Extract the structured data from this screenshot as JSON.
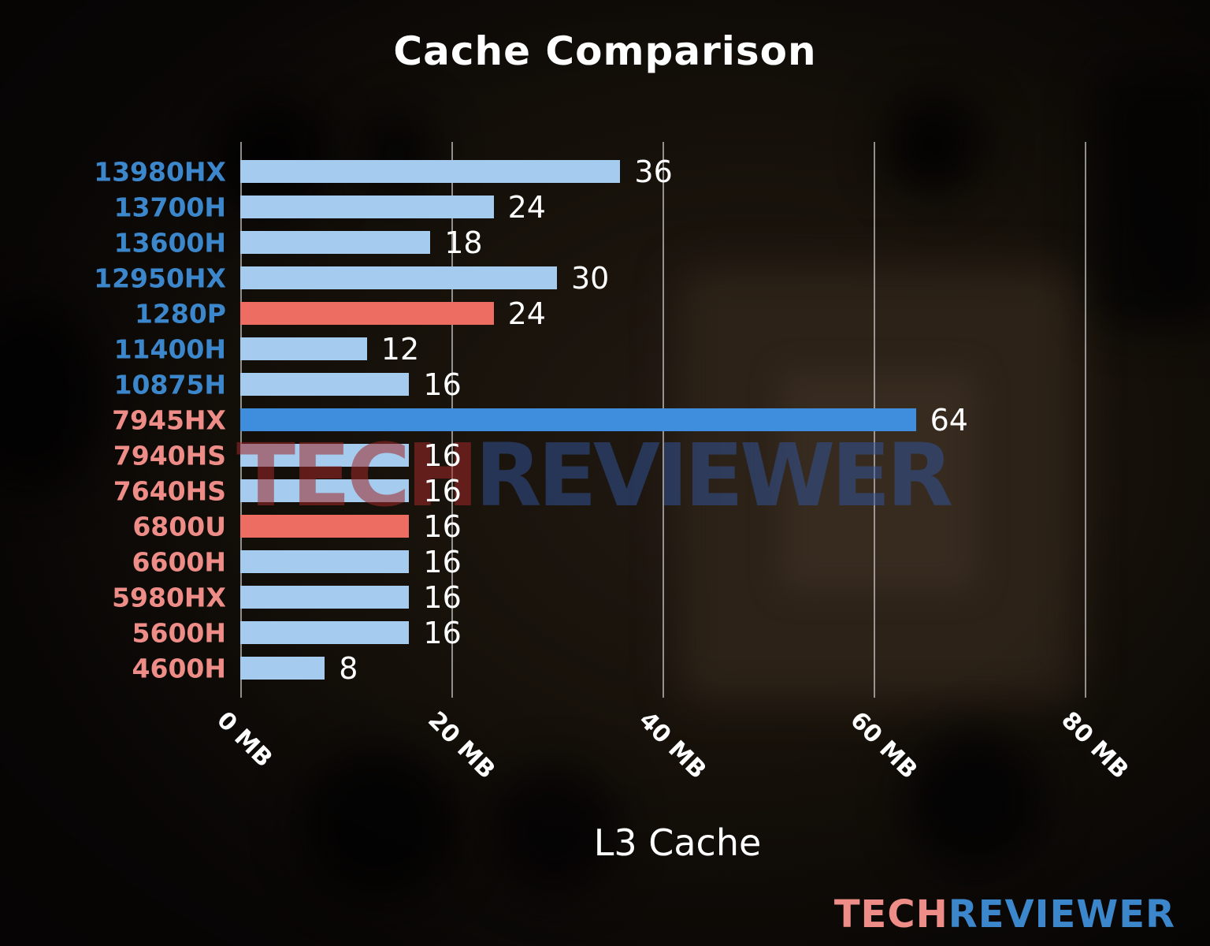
{
  "title": "Cache Comparison",
  "watermark": {
    "tech": "TECH",
    "reviewer": "REVIEWER"
  },
  "logo": {
    "tech": "TECH",
    "reviewer": "REVIEWER"
  },
  "colors": {
    "light_blue": "#A5CBEE",
    "bright_blue": "#3F8EDD",
    "salmon": "#EE6D62",
    "intel": "#3C87CB",
    "amd": "#EE8D87",
    "value_text": "#FFFFFF",
    "gridline": "rgba(200,200,200,0.7)",
    "watermark_tech": "rgba(160,40,40,0.55)",
    "watermark_reviewer": "rgba(50,85,160,0.5)",
    "logo_tech": "#EE8D87",
    "logo_reviewer": "#3C87CB"
  },
  "chart_data": {
    "type": "bar",
    "orientation": "horizontal",
    "title": "Cache Comparison",
    "xlabel": "L3 Cache",
    "unit": "MB",
    "xlim": [
      0,
      82
    ],
    "grid": true,
    "legend": false,
    "xtick_values": [
      0,
      20,
      40,
      60,
      80
    ],
    "xtick_labels": [
      "0 MB",
      "20 MB",
      "40 MB",
      "60 MB",
      "80 MB"
    ],
    "categories": [
      "13980HX",
      "13700H",
      "13600H",
      "12950HX",
      "1280P",
      "11400H",
      "10875H",
      "7945HX",
      "7940HS",
      "7640HS",
      "6800U",
      "6600H",
      "5980HX",
      "5600H",
      "4600H"
    ],
    "values": [
      36,
      24,
      18,
      30,
      24,
      12,
      16,
      64,
      16,
      16,
      16,
      16,
      16,
      16,
      8
    ],
    "bar_color_keys": [
      "light_blue",
      "light_blue",
      "light_blue",
      "light_blue",
      "salmon",
      "light_blue",
      "light_blue",
      "bright_blue",
      "light_blue",
      "light_blue",
      "salmon",
      "light_blue",
      "light_blue",
      "light_blue",
      "light_blue"
    ],
    "category_color_keys": [
      "intel",
      "intel",
      "intel",
      "intel",
      "intel",
      "intel",
      "intel",
      "amd",
      "amd",
      "amd",
      "amd",
      "amd",
      "amd",
      "amd",
      "amd"
    ]
  }
}
